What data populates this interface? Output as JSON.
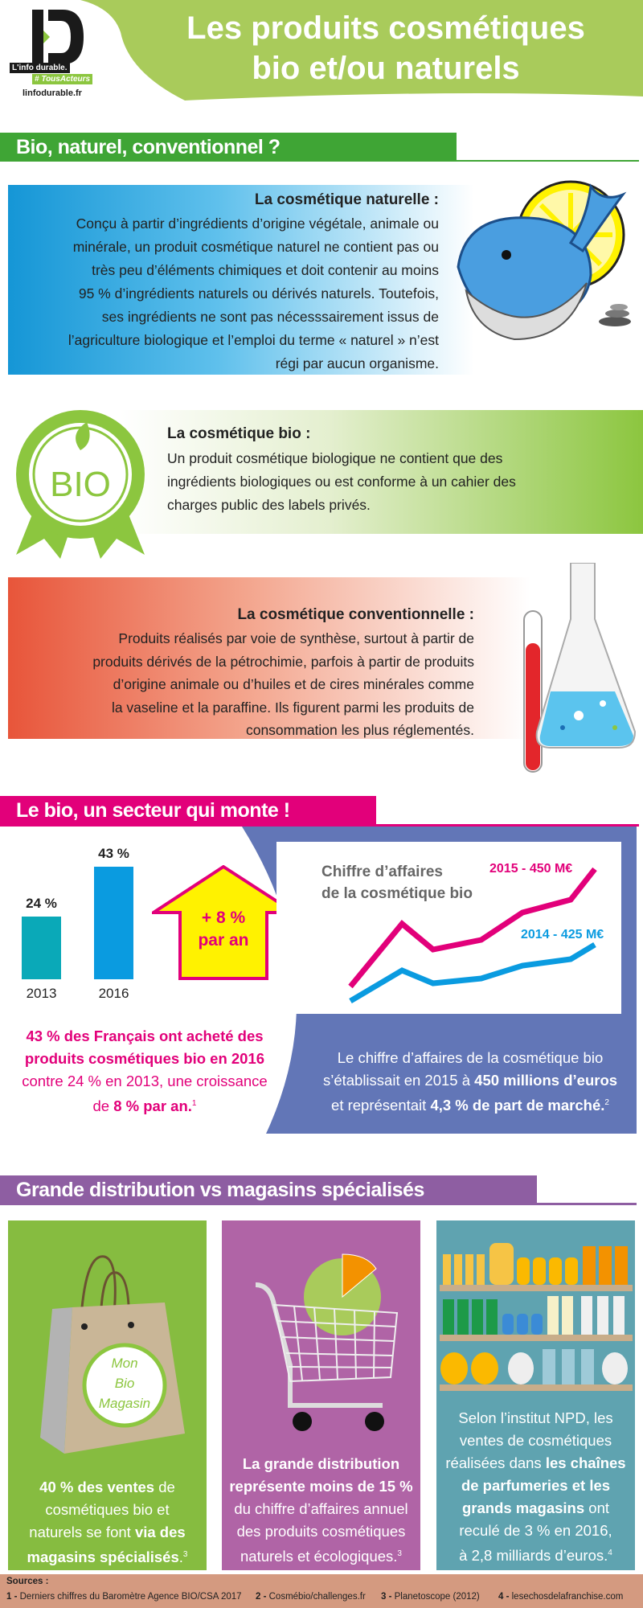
{
  "header": {
    "logo_text": "ID",
    "logo_tagline": "L'info durable.",
    "logo_hashtag": "# TousActeurs",
    "logo_site": "linfodurable.fr",
    "title_lines": [
      "Les produits cosmétiques",
      "bio et/ou naturels"
    ]
  },
  "section1": {
    "heading": "Bio, naturel, conventionnel ?",
    "naturelle": {
      "title": "La cosmétique naturelle :",
      "lines": [
        [
          {
            "t": "Conçu à partir d’ingrédients d’origine végétale, animale ou"
          }
        ],
        [
          {
            "t": "minérale, un produit cosmétique naturel ne contient pas ou"
          }
        ],
        [
          {
            "t": "très peu d’éléments chimiques et doit contenir au moins"
          }
        ],
        [
          {
            "t": "95 % d’ingrédients naturels ou dérivés naturels. Toutefois,"
          }
        ],
        [
          {
            "t": "ses ingrédients ne sont pas nécesssairement issus de"
          }
        ],
        [
          {
            "t": "l’agriculture biologique et l’emploi du terme « naturel » n’est"
          }
        ],
        [
          {
            "t": "régi par aucun organisme."
          }
        ]
      ]
    },
    "bio": {
      "badge_text": "BIO",
      "title": "La cosmétique bio :",
      "lines": [
        [
          {
            "t": "Un produit cosmétique biologique ne contient que des"
          }
        ],
        [
          {
            "t": "ingrédients biologiques ou est conforme à un cahier des"
          }
        ],
        [
          {
            "t": "charges public des labels privés."
          }
        ]
      ]
    },
    "conventionnelle": {
      "title": "La cosmétique conventionnelle :",
      "lines": [
        [
          {
            "t": "Produits réalisés par voie de synthèse, surtout à partir de"
          }
        ],
        [
          {
            "t": "produits dérivés de la pétrochimie, parfois à partir de produits"
          }
        ],
        [
          {
            "t": "d’origine animale ou d’huiles et de cires minérales comme"
          }
        ],
        [
          {
            "t": "la vaseline et la paraffine. Ils figurent parmi les produits de"
          }
        ],
        [
          {
            "t": "consommation les plus réglementés."
          }
        ]
      ]
    }
  },
  "section2": {
    "heading": "Le bio, un secteur qui monte !",
    "arrow": {
      "line1": "+ 8 %",
      "line2": "par an"
    },
    "left_text": [
      [
        {
          "t": "43 % des Français ont acheté des",
          "b": true
        }
      ],
      [
        {
          "t": "produits cosmétiques bio en 2016",
          "b": true
        }
      ],
      [
        {
          "t": "contre 24 % en 2013, une croissance"
        }
      ],
      [
        {
          "t": "de "
        },
        {
          "t": "8 % par an.",
          "b": true
        },
        {
          "t": "1",
          "sup": true
        }
      ]
    ],
    "right_text": [
      [
        {
          "t": "Le chiffre d’affaires de la cosmétique bio"
        }
      ],
      [
        {
          "t": "s’établissait en 2015 à "
        },
        {
          "t": "450 millions d’euros",
          "b": true
        }
      ],
      [
        {
          "t": "et représentait "
        },
        {
          "t": "4,3 % de part de marché.",
          "b": true
        },
        {
          "t": "2",
          "sup": true
        }
      ]
    ]
  },
  "chart_data": [
    {
      "type": "bar",
      "title": "",
      "categories": [
        "2013",
        "2016"
      ],
      "values": [
        24,
        43
      ],
      "value_labels": [
        "24 %",
        "43 %"
      ],
      "ylim": [
        0,
        45
      ],
      "colors": [
        "#0aa9b8",
        "#0a9be0"
      ]
    },
    {
      "type": "line",
      "title_lines": [
        "Chiffre d’affaires",
        "de la cosmétique bio"
      ],
      "x": [
        0,
        1.5,
        2.4,
        3.8,
        5,
        6.4,
        7.1
      ],
      "ylim": [
        0,
        100
      ],
      "series": [
        {
          "name": "2015 - 450 M€",
          "color": "#e2007a",
          "values": [
            17,
            56,
            40,
            46,
            63,
            71,
            90
          ]
        },
        {
          "name": "2014 - 425 M€",
          "color": "#0a9be0",
          "values": [
            8,
            27,
            19,
            22,
            30,
            34,
            43
          ]
        }
      ],
      "grid": false,
      "note": "relative trend, no axis values shown"
    }
  ],
  "section3": {
    "heading": "Grande distribution vs magasins spécialisés",
    "bag_label": [
      "Mon",
      "Bio",
      "Magasin"
    ],
    "cards": [
      {
        "lines": [
          [
            {
              "t": "40 % des ventes",
              "b": true
            },
            {
              "t": " de"
            }
          ],
          [
            {
              "t": "cosmétiques bio et"
            }
          ],
          [
            {
              "t": "naturels se font "
            },
            {
              "t": "via des",
              "b": true
            }
          ],
          [
            {
              "t": "magasins spécialisés",
              "b": true
            },
            {
              "t": "."
            },
            {
              "t": "3",
              "sup": true
            }
          ]
        ]
      },
      {
        "lines": [
          [
            {
              "t": "La grande distribution",
              "b": true
            }
          ],
          [
            {
              "t": "représente moins de 15 %",
              "b": true
            }
          ],
          [
            {
              "t": "du chiffre d’affaires annuel"
            }
          ],
          [
            {
              "t": "des produits cosmétiques"
            }
          ],
          [
            {
              "t": "naturels et écologiques."
            },
            {
              "t": "3",
              "sup": true
            }
          ]
        ]
      },
      {
        "lines": [
          [
            {
              "t": "Selon l’institut NPD,  les"
            }
          ],
          [
            {
              "t": "ventes de cosmétiques"
            }
          ],
          [
            {
              "t": "réalisées dans "
            },
            {
              "t": "les chaînes",
              "b": true
            }
          ],
          [
            {
              "t": "de parfumeries et les",
              "b": true
            }
          ],
          [
            {
              "t": "grands magasins",
              "b": true
            },
            {
              "t": " ont"
            }
          ],
          [
            {
              "t": "reculé de 3 % en 2016,"
            }
          ],
          [
            {
              "t": "à 2,8 milliards d’euros."
            },
            {
              "t": "4",
              "sup": true
            }
          ]
        ]
      }
    ]
  },
  "sources": {
    "title": "Sources :",
    "items": [
      {
        "num": "1 -",
        "text": "Derniers chiffres du Baromètre Agence BIO/CSA 2017"
      },
      {
        "num": "2 -",
        "text": "Cosmébio/challenges.fr"
      },
      {
        "num": "3 -",
        "text": "Planetoscope (2012)"
      },
      {
        "num": "4 -",
        "text": "lesechosdelafranchise.com"
      }
    ]
  },
  "colors": {
    "green": "#8cc63f",
    "section_green": "#3fa535",
    "pink": "#e2007a",
    "purple": "#8e5ea2",
    "blue_panel": "#6276b7",
    "card_green": "#86bc40",
    "card_purple": "#b064a6",
    "card_teal": "#5fa3b0",
    "sources_bg": "#d49a80"
  }
}
